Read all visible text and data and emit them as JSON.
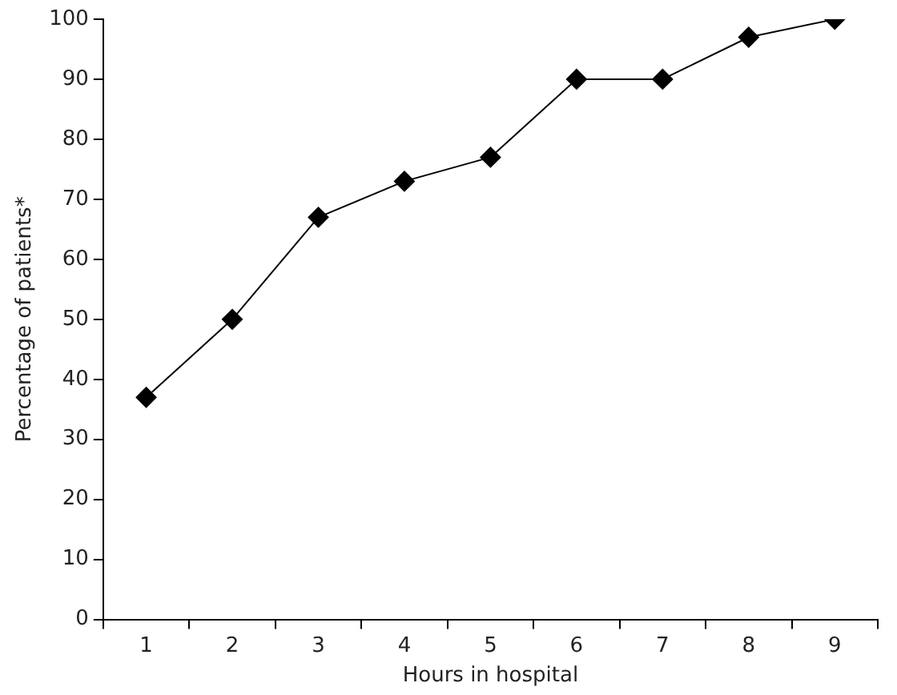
{
  "chart_data": {
    "type": "line",
    "xlabel": "Hours in hospital",
    "ylabel": "Percentage of patients*",
    "categories": [
      "1",
      "2",
      "3",
      "4",
      "5",
      "6",
      "7",
      "8",
      "9"
    ],
    "values": [
      37,
      50,
      67,
      73,
      77,
      90,
      90,
      97,
      100
    ],
    "color": "#000000",
    "marker": "diamond",
    "line_style": "solid",
    "ylim": [
      0,
      100
    ],
    "yticks": [
      0,
      10,
      20,
      30,
      40,
      50,
      60,
      70,
      80,
      90,
      100
    ]
  }
}
